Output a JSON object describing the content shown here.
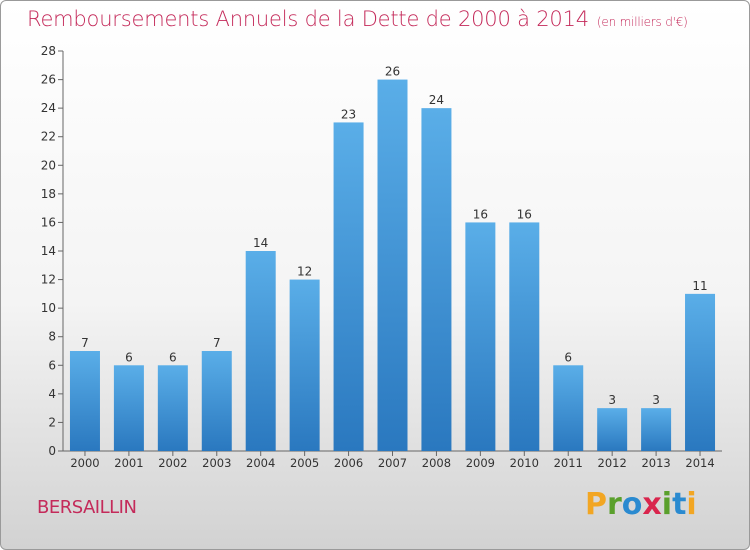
{
  "header": {
    "title": "Remboursements Annuels de la Dette de 2000 à 2014",
    "unit": "(en milliers d'€)"
  },
  "footer": {
    "commune": "BERSAILLIN",
    "logo": "Proxiti"
  },
  "chart_data": {
    "type": "bar",
    "title": "Remboursements Annuels de la Dette de 2000 à 2014",
    "subtitle": "(en milliers d'€)",
    "xlabel": "",
    "ylabel": "",
    "categories": [
      "2000",
      "2001",
      "2002",
      "2003",
      "2004",
      "2005",
      "2006",
      "2007",
      "2008",
      "2009",
      "2010",
      "2011",
      "2012",
      "2013",
      "2014"
    ],
    "values": [
      7,
      6,
      6,
      7,
      14,
      12,
      23,
      26,
      24,
      16,
      16,
      6,
      3,
      3,
      11
    ],
    "ylim": [
      0,
      28
    ],
    "yticks": [
      0,
      2,
      4,
      6,
      8,
      10,
      12,
      14,
      16,
      18,
      20,
      22,
      24,
      26,
      28
    ],
    "grid": false,
    "legend": "none",
    "bar_color_top": "#5aaee8",
    "bar_color_bottom": "#2a78bf",
    "title_color": "#c42a5a"
  }
}
